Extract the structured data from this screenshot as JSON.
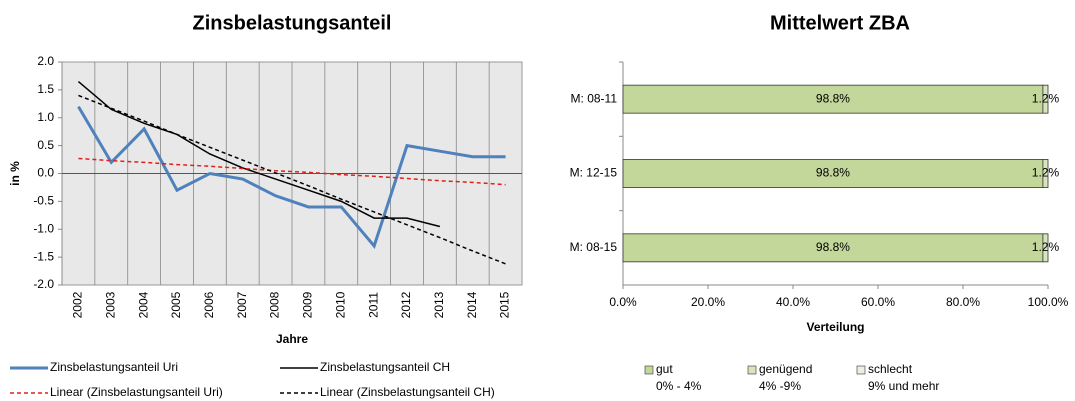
{
  "chart_data": [
    {
      "type": "line",
      "title": "Zinsbelastungsanteil",
      "y_label": "in %",
      "x_label": "Jahre",
      "categories": [
        "2002",
        "2003",
        "2004",
        "2005",
        "2006",
        "2007",
        "2008",
        "2009",
        "2010",
        "2011",
        "2012",
        "2013",
        "2014",
        "2015"
      ],
      "ylim": [
        -2,
        2
      ],
      "yticks": [
        {
          "value": -2,
          "label": "-2.0"
        },
        -1.5,
        {
          "value": -1,
          "label": "-1.0"
        },
        -0.5,
        {
          "value": 0,
          "label": "0.0"
        },
        0.5,
        {
          "value": 1,
          "label": "1.0"
        },
        1.5,
        {
          "value": 2,
          "label": "2.0"
        }
      ],
      "grid": "x",
      "series": [
        {
          "name": "Zinsbelastungsanteil Uri",
          "color": "#4f81bd",
          "width": 3,
          "dash": "none",
          "values": [
            1.2,
            0.2,
            0.8,
            -0.3,
            0.0,
            -0.1,
            -0.4,
            -0.6,
            -0.6,
            -1.3,
            0.5,
            0.4,
            0.3,
            0.3
          ]
        },
        {
          "name": "Zinsbelastungsanteil CH",
          "color": "#000000",
          "width": 1.5,
          "dash": "none",
          "values": [
            1.65,
            1.15,
            0.9,
            0.7,
            0.35,
            0.1,
            -0.1,
            -0.3,
            -0.5,
            -0.8,
            -0.8,
            -0.95,
            null,
            null
          ]
        },
        {
          "name": "Linear (Zinsbelastungsanteil Uri)",
          "color": "#e0201b",
          "width": 1.5,
          "dash": "4 3",
          "values": [
            0.27,
            0.23,
            0.2,
            0.16,
            0.13,
            0.09,
            0.05,
            0.02,
            -0.02,
            -0.05,
            -0.09,
            -0.13,
            -0.16,
            -0.2
          ]
        },
        {
          "name": "Linear (Zinsbelastungsanteil CH)",
          "color": "#000000",
          "width": 1.5,
          "dash": "4 3",
          "values": [
            1.4,
            1.17,
            0.94,
            0.7,
            0.47,
            0.24,
            0.01,
            -0.22,
            -0.46,
            -0.69,
            -0.92,
            -1.15,
            -1.39,
            -1.62
          ]
        }
      ]
    },
    {
      "type": "stacked_bar_horizontal",
      "title": "Mittelwert ZBA",
      "x_label": "Verteilung",
      "categories": [
        "M: 08-11",
        "M: 12-15",
        "M: 08-15"
      ],
      "xlim": [
        0,
        100
      ],
      "xticks": [
        {
          "value": 0,
          "label": "0.0%"
        },
        {
          "value": 20,
          "label": "20.0%"
        },
        {
          "value": 40,
          "label": "40.0%"
        },
        {
          "value": 60,
          "label": "60.0%"
        },
        {
          "value": 80,
          "label": "80.0%"
        },
        {
          "value": 100,
          "label": "100.0%"
        }
      ],
      "series": [
        {
          "name": "gut",
          "range": "0% - 4%",
          "color": "#c4d79b",
          "values": [
            98.8,
            98.8,
            98.8
          ],
          "value_labels": [
            "98.8%",
            "98.8%",
            "98.8%"
          ]
        },
        {
          "name": "genügend",
          "range": "4% -9%",
          "color": "#d8e4bc",
          "values": [
            1.2,
            1.2,
            1.2
          ],
          "value_labels": [
            "1.2%",
            "1.2%",
            "1.2%"
          ]
        },
        {
          "name": "schlecht",
          "range": "9% und mehr",
          "color": "#ebf1de",
          "values": [
            0,
            0,
            0
          ]
        }
      ]
    }
  ]
}
